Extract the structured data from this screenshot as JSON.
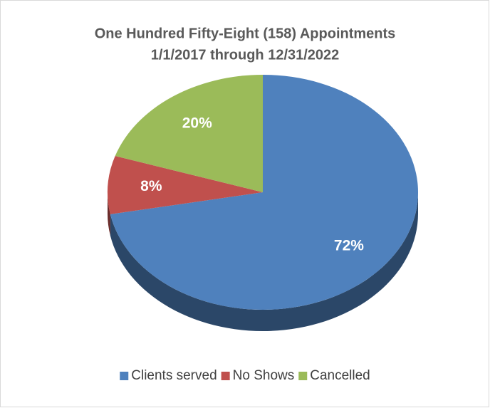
{
  "chart_data": {
    "type": "pie",
    "title": [
      "One Hundred Fifty-Eight (158) Appointments",
      "1/1/2017 through 12/31/2022"
    ],
    "categories": [
      "Clients served",
      "No Shows",
      "Cancelled"
    ],
    "values": [
      72,
      8,
      20
    ],
    "value_labels": [
      "72%",
      "8%",
      "20%"
    ],
    "colors": [
      "#4f81bd",
      "#c0504d",
      "#9bbb59"
    ],
    "legend": "bottom"
  }
}
